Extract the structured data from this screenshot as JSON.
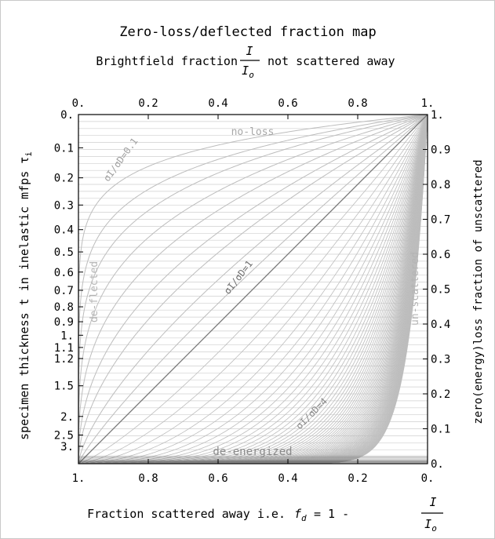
{
  "chart_data": {
    "type": "line",
    "title": "Zero-loss/deflected fraction map",
    "subtitle": {
      "prefix": "Brightfield fraction",
      "fraction_numerator": "I",
      "fraction_denominator": "I",
      "fraction_denominator_sub": "o",
      "suffix": "not scattered away"
    },
    "xlabel_bottom": {
      "prefix": "Fraction scattered away i.e.",
      "symbol": "f",
      "symbol_sub": "d",
      "equals": "= 1 -",
      "fraction_numerator": "I",
      "fraction_denominator": "I",
      "fraction_denominator_sub": "o"
    },
    "ylabel_left": {
      "text": "specimen thickness t in inelastic mfps τ",
      "sub": "i"
    },
    "ylabel_right": "zero(energy)loss fraction of unscattered",
    "top_axis": {
      "range": [
        0,
        1
      ],
      "ticks": [
        {
          "v": 0,
          "label": "0."
        },
        {
          "v": 0.2,
          "label": "0.2"
        },
        {
          "v": 0.4,
          "label": "0.4"
        },
        {
          "v": 0.6,
          "label": "0.6"
        },
        {
          "v": 0.8,
          "label": "0.8"
        },
        {
          "v": 1,
          "label": "1."
        }
      ]
    },
    "bottom_axis": {
      "range": [
        1,
        0
      ],
      "ticks": [
        {
          "v": 1,
          "label": "1."
        },
        {
          "v": 0.8,
          "label": "0.8"
        },
        {
          "v": 0.6,
          "label": "0.6"
        },
        {
          "v": 0.4,
          "label": "0.4"
        },
        {
          "v": 0.2,
          "label": "0.2"
        },
        {
          "v": 0,
          "label": "0."
        }
      ]
    },
    "right_axis": {
      "range": [
        0,
        1
      ],
      "ticks": [
        {
          "v": 0,
          "label": "0."
        },
        {
          "v": 0.1,
          "label": "0.1"
        },
        {
          "v": 0.2,
          "label": "0.2"
        },
        {
          "v": 0.3,
          "label": "0.3"
        },
        {
          "v": 0.4,
          "label": "0.4"
        },
        {
          "v": 0.5,
          "label": "0.5"
        },
        {
          "v": 0.6,
          "label": "0.6"
        },
        {
          "v": 0.7,
          "label": "0.7"
        },
        {
          "v": 0.8,
          "label": "0.8"
        },
        {
          "v": 0.9,
          "label": "0.9"
        },
        {
          "v": 1,
          "label": "1."
        }
      ]
    },
    "left_axis": {
      "scale": "exp(-t)",
      "ticks": [
        {
          "v": 0,
          "label": "0."
        },
        {
          "v": 0.1,
          "label": "0.1"
        },
        {
          "v": 0.2,
          "label": "0.2"
        },
        {
          "v": 0.3,
          "label": "0.3"
        },
        {
          "v": 0.4,
          "label": "0.4"
        },
        {
          "v": 0.5,
          "label": "0.5"
        },
        {
          "v": 0.6,
          "label": "0.6"
        },
        {
          "v": 0.7,
          "label": "0.7"
        },
        {
          "v": 0.8,
          "label": "0.8"
        },
        {
          "v": 0.9,
          "label": "0.9"
        },
        {
          "v": 1,
          "label": "1."
        },
        {
          "v": 1.1,
          "label": "1.1"
        },
        {
          "v": 1.2,
          "label": "1.2"
        },
        {
          "v": 1.5,
          "label": "1.5"
        },
        {
          "v": 2,
          "label": "2."
        },
        {
          "v": 2.5,
          "label": "2.5"
        },
        {
          "v": 3,
          "label": "3."
        }
      ]
    },
    "curves": {
      "relation": "f_zeroloss = (I/Io)^(σI/σD)",
      "ratios_low": [
        0.1,
        0.15,
        0.2,
        0.27,
        0.35,
        0.45,
        0.55,
        0.7,
        0.85
      ],
      "ratios_high": [
        1.2,
        1.45,
        1.75,
        2.1,
        2.5,
        3.0,
        3.5,
        4.0
      ],
      "highlight_ratio": 1
    },
    "annotations": {
      "no_loss": "no-loss",
      "de_energized": "de-energized",
      "de_flected": "de-flected",
      "un_scattered": "un-scattered",
      "ratio_low": "σI/σD=0.1",
      "ratio_mid": "σI/σD=1",
      "ratio_high": "σI/σD=4"
    },
    "grid": true,
    "colors": {
      "curves": "#bdbdbd",
      "grid": "#cfcfcf",
      "diagonal": "#777777",
      "axis": "#000000",
      "annotation": "#a8a8a8"
    }
  }
}
